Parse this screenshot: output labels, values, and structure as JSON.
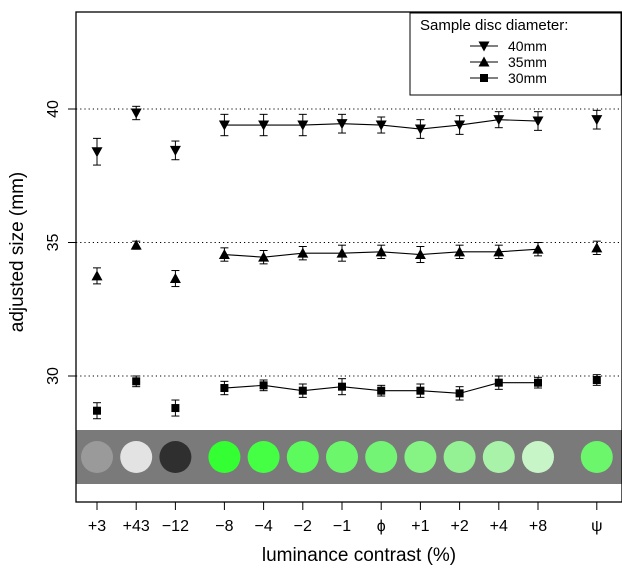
{
  "chart_data": {
    "type": "scatter",
    "xlabel": "luminance contrast (%)",
    "ylabel": "adjusted size (mm)",
    "ylim": [
      25.5,
      43.6
    ],
    "y_ticks": [
      30,
      35,
      40
    ],
    "grid": "horizontal dotted reference lines at 30, 35, 40",
    "categories": [
      "+3",
      "+43",
      "−12",
      "−8",
      "−4",
      "−2",
      "−1",
      "ϕ",
      "+1",
      "+2",
      "+4",
      "+8",
      "ψ"
    ],
    "category_positions": [
      1,
      2,
      3,
      4.25,
      5.25,
      6.25,
      7.25,
      8.25,
      9.25,
      10.25,
      11.25,
      12.25,
      13.75
    ],
    "connected_range": [
      3,
      11
    ],
    "swatch_colors": [
      "#9a9a9a",
      "#e3e3e3",
      "#2f2f2f",
      "#33ff33",
      "#44ff44",
      "#5cfa5c",
      "#6cf66c",
      "#74f474",
      "#85f485",
      "#94f294",
      "#a9f2a9",
      "#c8f5c8",
      "#6cf66c"
    ],
    "swatch_band_color": "#7a7a7a",
    "legend": {
      "title": "Sample disc diameter:",
      "placement": "top-right"
    },
    "series": [
      {
        "name": "40mm",
        "marker": "triangle-down",
        "values": [
          38.4,
          39.85,
          38.45,
          39.4,
          39.4,
          39.4,
          39.45,
          39.4,
          39.25,
          39.4,
          39.6,
          39.55,
          39.6
        ],
        "errors": [
          0.5,
          0.25,
          0.35,
          0.4,
          0.4,
          0.4,
          0.35,
          0.3,
          0.35,
          0.35,
          0.3,
          0.35,
          0.35
        ]
      },
      {
        "name": "35mm",
        "marker": "triangle-up",
        "values": [
          33.75,
          34.9,
          33.65,
          34.55,
          34.45,
          34.6,
          34.6,
          34.65,
          34.55,
          34.65,
          34.65,
          34.75,
          34.8
        ],
        "errors": [
          0.3,
          0.15,
          0.3,
          0.25,
          0.25,
          0.25,
          0.3,
          0.25,
          0.3,
          0.25,
          0.25,
          0.25,
          0.25
        ]
      },
      {
        "name": "30mm",
        "marker": "square",
        "values": [
          28.7,
          29.8,
          28.8,
          29.55,
          29.65,
          29.45,
          29.6,
          29.45,
          29.45,
          29.35,
          29.75,
          29.75,
          29.85
        ],
        "errors": [
          0.3,
          0.2,
          0.3,
          0.25,
          0.2,
          0.25,
          0.3,
          0.2,
          0.25,
          0.25,
          0.25,
          0.2,
          0.2
        ]
      }
    ]
  }
}
